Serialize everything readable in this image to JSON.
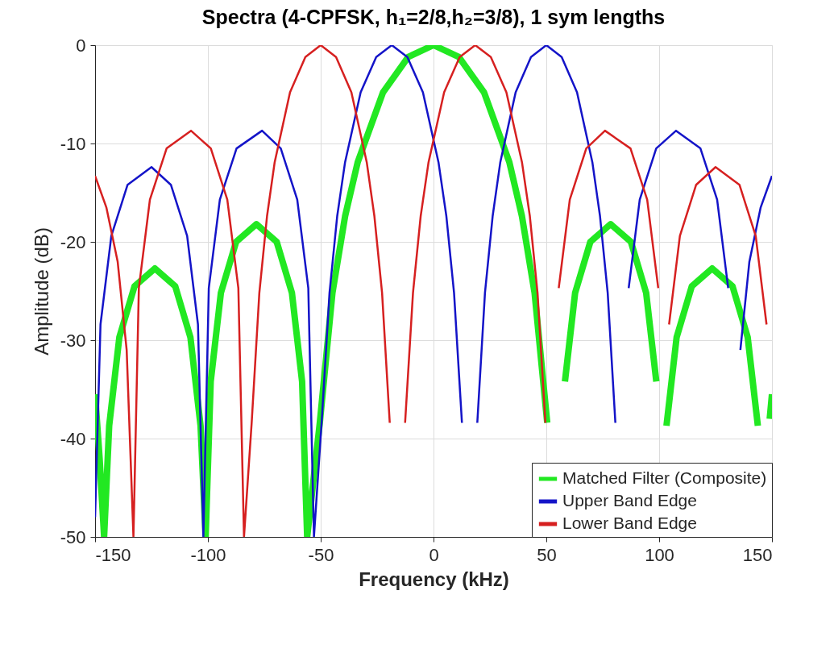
{
  "chart_data": {
    "type": "line",
    "title": "Spectra (4-CPFSK, h₁=2/8,h₂=3/8), 1 sym lengths",
    "xlabel": "Frequency (kHz)",
    "ylabel": "Amplitude (dB)",
    "xlim": [
      -150,
      150
    ],
    "xticks": [
      -150,
      -100,
      -50,
      0,
      50,
      100,
      150
    ],
    "ylim": [
      -50,
      0
    ],
    "yticks": [
      -50,
      -40,
      -30,
      -20,
      -10,
      0
    ],
    "grid": true,
    "legend": "bottom right",
    "line_style": "solid",
    "marker": "none",
    "series": [
      {
        "name": "Matched Filter (Composite)",
        "color": "#22e822",
        "x": [
          -150,
          -148,
          -146,
          -143.75,
          -139.25,
          -132.5,
          -123.5,
          -114.5,
          -107.75,
          -103.25,
          -101,
          -98.75,
          -94.25,
          -87.5,
          -78.5,
          -69.5,
          -62.75,
          -58.25,
          -56,
          -50.4,
          -44.8,
          -39.2,
          -33.6,
          -22.4,
          -11.2,
          0,
          11.2,
          22.4,
          33.6,
          39.2,
          44.8,
          50.4,
          56,
          58.25,
          62.75,
          69.5,
          78.5,
          87.5,
          94.25,
          98.75,
          101,
          103.25,
          107.75,
          114.5,
          123.5,
          132.5,
          139.25,
          143.75,
          146,
          149,
          150
        ],
        "values": [
          -35.5,
          -42,
          -50,
          -38.7,
          -29.7,
          -24.5,
          -22.7,
          -24.5,
          -29.7,
          -38.7,
          -50,
          -34.2,
          -25.2,
          -20,
          -18.2,
          -20,
          -25.2,
          -34.2,
          -50,
          -38.4,
          -25.2,
          -17.4,
          -11.9,
          -4.8,
          -1.2,
          0,
          -1.2,
          -4.8,
          -11.9,
          -17.4,
          -25.2,
          -38.4,
          null,
          -34.2,
          -25.2,
          -20,
          -18.2,
          -20,
          -25.2,
          -34.2,
          null,
          -38.7,
          -29.7,
          -24.5,
          -22.7,
          -24.5,
          -29.7,
          -38.7,
          null,
          -38,
          -35.5
        ]
      },
      {
        "name": "Upper Band Edge",
        "color": "#1414c8",
        "x": [
          -150,
          -147.6,
          -142.8,
          -135.6,
          -125,
          -116.4,
          -109.2,
          -104.4,
          -102,
          -99.6,
          -94.7,
          -87.3,
          -76,
          -67.7,
          -60.4,
          -55.5,
          -53,
          -49.6,
          -46.1,
          -42.7,
          -39.2,
          -32.3,
          -25.4,
          -18.5,
          -11.6,
          -4.7,
          2.2,
          5.7,
          9.1,
          12.6,
          16,
          19.4,
          22.8,
          26.2,
          29.6,
          36.4,
          43.2,
          50,
          56.8,
          63.6,
          70.4,
          73.8,
          77.2,
          80.6,
          84,
          86.5,
          91.4,
          98.7,
          107.5,
          118.3,
          125.7,
          130.6,
          133,
          136,
          140,
          145,
          150
        ],
        "values": [
          -48,
          -28.4,
          -19.4,
          -14.2,
          -12.4,
          -14.2,
          -19.4,
          -28.4,
          -50,
          -24.7,
          -15.7,
          -10.5,
          -8.7,
          -10.5,
          -15.7,
          -24.7,
          -50,
          -38.4,
          -25.2,
          -17.4,
          -11.9,
          -4.8,
          -1.2,
          0,
          -1.2,
          -4.8,
          -11.9,
          -17.4,
          -25.2,
          -38.4,
          null,
          -38.4,
          -25.2,
          -17.4,
          -11.9,
          -4.8,
          -1.2,
          0,
          -1.2,
          -4.8,
          -11.9,
          -17.4,
          -25.2,
          -38.4,
          null,
          -24.7,
          -15.7,
          -10.5,
          -8.7,
          -10.5,
          -15.7,
          -24.7,
          null,
          -31,
          -22,
          -16.5,
          -13.3
        ]
      },
      {
        "name": "Lower Band Edge",
        "color": "#d62020",
        "x": [
          -150,
          -145,
          -140,
          -136,
          -133,
          -130.6,
          -125.7,
          -118.3,
          -107.5,
          -98.7,
          -91.4,
          -86.5,
          -84,
          -80.6,
          -77.2,
          -73.8,
          -70.4,
          -63.6,
          -56.8,
          -50,
          -43.2,
          -36.4,
          -29.6,
          -26.2,
          -22.8,
          -19.4,
          -16,
          -12.6,
          -9.1,
          -5.7,
          -2.2,
          4.7,
          11.6,
          18.5,
          25.4,
          32.3,
          39.2,
          42.7,
          46.1,
          49.6,
          53,
          55.5,
          60.4,
          67.7,
          76,
          87.3,
          94.7,
          99.6,
          102,
          104.4,
          109.2,
          116.4,
          125,
          135.6,
          142.8,
          147.6
        ],
        "values": [
          -13.3,
          -16.5,
          -22,
          -31,
          -50,
          -24.7,
          -15.7,
          -10.5,
          -8.7,
          -10.5,
          -15.7,
          -24.7,
          -50,
          -38.4,
          -25.2,
          -17.4,
          -11.9,
          -4.8,
          -1.2,
          0,
          -1.2,
          -4.8,
          -11.9,
          -17.4,
          -25.2,
          -38.4,
          null,
          -38.4,
          -25.2,
          -17.4,
          -11.9,
          -4.8,
          -1.2,
          0,
          -1.2,
          -4.8,
          -11.9,
          -17.4,
          -25.2,
          -38.4,
          null,
          -24.7,
          -15.7,
          -10.5,
          -8.7,
          -10.5,
          -15.7,
          -24.7,
          null,
          -28.4,
          -19.4,
          -14.2,
          -12.4,
          -14.2,
          -19.4,
          -28.4
        ]
      }
    ]
  }
}
